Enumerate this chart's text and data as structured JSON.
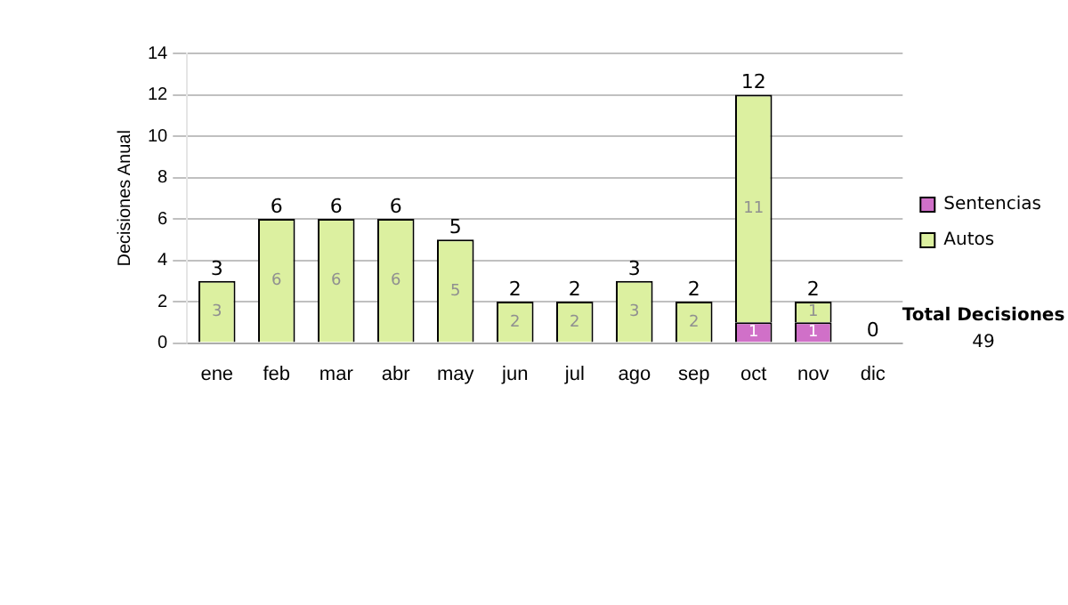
{
  "chart_data": {
    "type": "bar",
    "stacked": true,
    "ylabel": "Decisiones Anual",
    "categories": [
      "ene",
      "feb",
      "mar",
      "abr",
      "may",
      "jun",
      "jul",
      "ago",
      "sep",
      "oct",
      "nov",
      "dic"
    ],
    "series": [
      {
        "name": "Sentencias",
        "color": "#d070c8",
        "values": [
          0,
          0,
          0,
          0,
          0,
          0,
          0,
          0,
          0,
          1,
          1,
          0
        ],
        "value_labels": [
          null,
          null,
          null,
          null,
          null,
          null,
          null,
          null,
          null,
          "1",
          "1",
          null
        ]
      },
      {
        "name": "Autos",
        "color": "#dcf0a0",
        "values": [
          3,
          6,
          6,
          6,
          5,
          2,
          2,
          3,
          2,
          11,
          1,
          0
        ],
        "value_labels": [
          "3",
          "6",
          "6",
          "6",
          "5",
          "2",
          "2",
          "3",
          "2",
          "11",
          "1",
          null
        ]
      }
    ],
    "totals": [
      "3",
      "6",
      "6",
      "6",
      "5",
      "2",
      "2",
      "3",
      "2",
      "12",
      "2",
      "0"
    ],
    "ylim": [
      0,
      14
    ],
    "yticks": [
      0,
      2,
      4,
      6,
      8,
      10,
      12,
      14
    ],
    "grid": "y",
    "legend": "right",
    "annotations": [
      "Total Decisiones",
      "49"
    ]
  }
}
